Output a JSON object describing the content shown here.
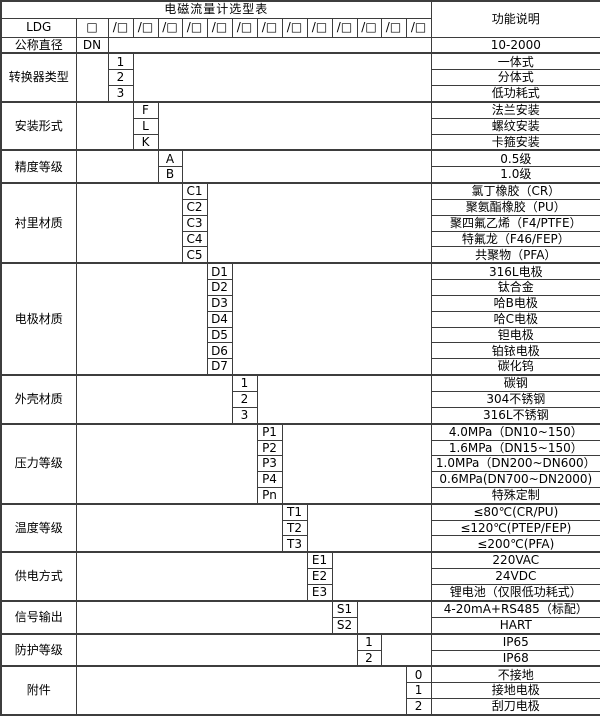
{
  "page": {
    "background": "#ffffff",
    "border_color": "#3d3d3d",
    "text_color": "#000000"
  },
  "table": {
    "title": "电磁流量计选型表",
    "function_column_header": "功能说明",
    "model_row": {
      "label": "LDG",
      "first_box": "□",
      "slot_boxes": [
        "/□",
        "/□",
        "/□",
        "/□",
        "/□",
        "/□",
        "/□",
        "/□",
        "/□",
        "/□",
        "/□",
        "/□",
        "/□"
      ]
    },
    "dn_row": {
      "label": "公称直径",
      "code": "DN",
      "desc": "10-2000"
    },
    "groups": [
      {
        "key": "converter-type",
        "label": "转换器类型",
        "stair": 1,
        "options": [
          {
            "code": "1",
            "desc": "一体式"
          },
          {
            "code": "2",
            "desc": "分体式"
          },
          {
            "code": "3",
            "desc": "低功耗式"
          }
        ]
      },
      {
        "key": "installation-form",
        "label": "安装形式",
        "stair": 2,
        "options": [
          {
            "code": "F",
            "desc": "法兰安装"
          },
          {
            "code": "L",
            "desc": "螺纹安装"
          },
          {
            "code": "K",
            "desc": "卡箍安装"
          }
        ]
      },
      {
        "key": "accuracy-class",
        "label": "精度等级",
        "stair": 3,
        "options": [
          {
            "code": "A",
            "desc": "0.5级"
          },
          {
            "code": "B",
            "desc": "1.0级"
          }
        ]
      },
      {
        "key": "liner-material",
        "label": "衬里材质",
        "stair": 4,
        "options": [
          {
            "code": "C1",
            "desc": "氯丁橡胶（CR）"
          },
          {
            "code": "C2",
            "desc": "聚氨酯橡胶（PU）"
          },
          {
            "code": "C3",
            "desc": "聚四氟乙烯（F4/PTFE）"
          },
          {
            "code": "C4",
            "desc": "特氟龙（F46/FEP）"
          },
          {
            "code": "C5",
            "desc": "共聚物（PFA）"
          }
        ]
      },
      {
        "key": "electrode-material",
        "label": "电极材质",
        "stair": 5,
        "options": [
          {
            "code": "D1",
            "desc": "316L电极"
          },
          {
            "code": "D2",
            "desc": "钛合金"
          },
          {
            "code": "D3",
            "desc": "哈B电极"
          },
          {
            "code": "D4",
            "desc": "哈C电极"
          },
          {
            "code": "D5",
            "desc": "钽电极"
          },
          {
            "code": "D6",
            "desc": "铂铱电极"
          },
          {
            "code": "D7",
            "desc": "碳化钨"
          }
        ]
      },
      {
        "key": "housing-material",
        "label": "外壳材质",
        "stair": 6,
        "options": [
          {
            "code": "1",
            "desc": "碳钢"
          },
          {
            "code": "2",
            "desc": "304不锈钢"
          },
          {
            "code": "3",
            "desc": "316L不锈钢"
          }
        ]
      },
      {
        "key": "pressure-rating",
        "label": "压力等级",
        "stair": 7,
        "options": [
          {
            "code": "P1",
            "desc": "4.0MPa（DN10~150）",
            "align": "left"
          },
          {
            "code": "P2",
            "desc": "1.6MPa（DN15~150）",
            "align": "left"
          },
          {
            "code": "P3",
            "desc": "1.0MPa（DN200~DN600）",
            "align": "left"
          },
          {
            "code": "P4",
            "desc": "0.6MPa(DN700~DN2000)",
            "align": "left"
          },
          {
            "code": "Pn",
            "desc": "特殊定制"
          }
        ]
      },
      {
        "key": "temperature-rating",
        "label": "温度等级",
        "stair": 8,
        "options": [
          {
            "code": "T1",
            "desc": "≤80℃(CR/PU)"
          },
          {
            "code": "T2",
            "desc": "≤120℃(PTEP/FEP)"
          },
          {
            "code": "T3",
            "desc": "≤200℃(PFA)"
          }
        ]
      },
      {
        "key": "power-supply",
        "label": "供电方式",
        "stair": 9,
        "options": [
          {
            "code": "E1",
            "desc": "220VAC"
          },
          {
            "code": "E2",
            "desc": "24VDC"
          },
          {
            "code": "E3",
            "desc": "锂电池（仅限低功耗式）"
          }
        ]
      },
      {
        "key": "signal-output",
        "label": "信号输出",
        "stair": 10,
        "options": [
          {
            "code": "S1",
            "desc": "4-20mA+RS485（标配）"
          },
          {
            "code": "S2",
            "desc": "HART"
          }
        ]
      },
      {
        "key": "protection-rating",
        "label": "防护等级",
        "stair": 11,
        "options": [
          {
            "code": "1",
            "desc": "IP65"
          },
          {
            "code": "2",
            "desc": "IP68"
          }
        ]
      },
      {
        "key": "accessories",
        "label": "附件",
        "stair": 13,
        "options": [
          {
            "code": "0",
            "desc": "不接地"
          },
          {
            "code": "1",
            "desc": "接地电极"
          },
          {
            "code": "2",
            "desc": "刮刀电极"
          }
        ]
      }
    ]
  }
}
